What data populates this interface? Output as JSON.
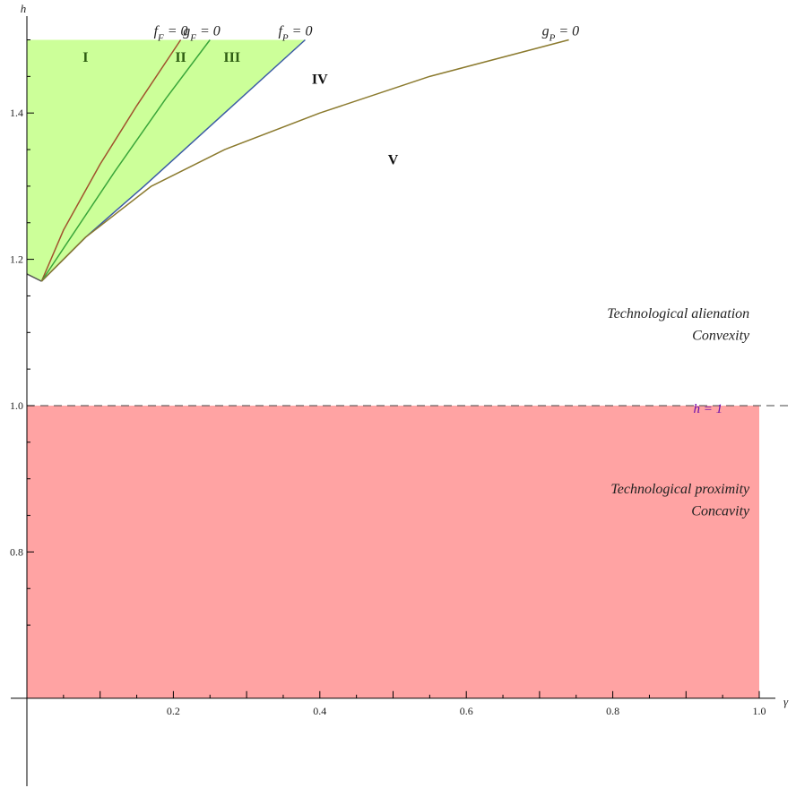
{
  "chart_data": {
    "type": "area",
    "title": "",
    "xlabel": "γ",
    "ylabel": "h",
    "xlim": [
      0,
      1.05
    ],
    "ylim": [
      0.6,
      1.52
    ],
    "x_ticks": [
      "0.2",
      "0.4",
      "0.6",
      "0.8",
      "1.0"
    ],
    "y_ticks": [
      "0.8",
      "1.0",
      "1.2",
      "1.4"
    ],
    "grid": false,
    "curves": [
      {
        "name": "f_F = 0",
        "label_main": "f",
        "label_sub": "F",
        "label_rest": " = 0",
        "color": "#a0522d",
        "x": [
          0.02,
          0.05,
          0.1,
          0.15,
          0.21
        ],
        "y": [
          1.17,
          1.24,
          1.33,
          1.41,
          1.5
        ]
      },
      {
        "name": "g_F = 0",
        "label_main": "g",
        "label_sub": "F",
        "label_rest": " = 0",
        "color": "#3aa63a",
        "x": [
          0.02,
          0.06,
          0.12,
          0.19,
          0.25
        ],
        "y": [
          1.17,
          1.23,
          1.32,
          1.42,
          1.5
        ]
      },
      {
        "name": "f_P = 0",
        "label_main": "f",
        "label_sub": "P",
        "label_rest": " = 0",
        "color": "#3b5ba5",
        "x": [
          0.02,
          0.08,
          0.16,
          0.27,
          0.38
        ],
        "y": [
          1.17,
          1.23,
          1.3,
          1.4,
          1.5
        ]
      },
      {
        "name": "g_P = 0",
        "label_main": "g",
        "label_sub": "P",
        "label_rest": " = 0",
        "color": "#8b7a2e",
        "x": [
          0.02,
          0.08,
          0.17,
          0.27,
          0.4,
          0.55,
          0.74
        ],
        "y": [
          1.17,
          1.23,
          1.3,
          1.35,
          1.4,
          1.45,
          1.5
        ]
      }
    ],
    "boundary_point": {
      "x": 0.02,
      "y": 1.17
    },
    "left_boundary": {
      "x": [
        0,
        0.02
      ],
      "y": [
        1.18,
        1.17
      ]
    },
    "region_fill_color": "#ccff99",
    "lower_fill_color": "#ffa3a3",
    "lower_fill": {
      "x": [
        0,
        1.0
      ],
      "y": [
        0.6,
        1.0
      ]
    },
    "regions": [
      {
        "label": "I",
        "x": 0.08,
        "y": 1.47,
        "color": "#2e5d12"
      },
      {
        "label": "II",
        "x": 0.21,
        "y": 1.47,
        "color": "#2e5d12"
      },
      {
        "label": "III",
        "x": 0.28,
        "y": 1.47,
        "color": "#2e5d12"
      },
      {
        "label": "IV",
        "x": 0.4,
        "y": 1.44,
        "color": "#111111"
      },
      {
        "label": "V",
        "x": 0.5,
        "y": 1.33,
        "color": "#111111"
      }
    ],
    "reference_line": {
      "y": 1.0,
      "label": "h = 1",
      "label_color": "#6a0dad"
    },
    "annotations": [
      {
        "text": "Technological alienation",
        "x": 0.95,
        "y": 1.12
      },
      {
        "text": "Convexity",
        "x": 0.95,
        "y": 1.09
      },
      {
        "text": "Technological proximity",
        "x": 0.95,
        "y": 0.88
      },
      {
        "text": "Concavity",
        "x": 0.95,
        "y": 0.85
      }
    ]
  }
}
